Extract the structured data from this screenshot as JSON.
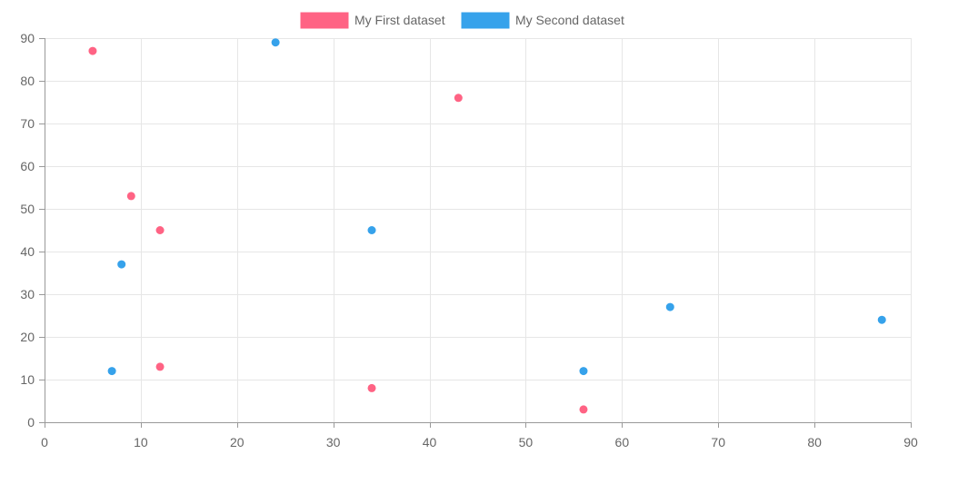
{
  "chart_data": {
    "type": "scatter",
    "title": "",
    "xlabel": "",
    "ylabel": "",
    "xlim": [
      0,
      90
    ],
    "ylim": [
      0,
      90
    ],
    "x_ticks": [
      0,
      10,
      20,
      30,
      40,
      50,
      60,
      70,
      80,
      90
    ],
    "y_ticks": [
      0,
      10,
      20,
      30,
      40,
      50,
      60,
      70,
      80,
      90
    ],
    "grid": true,
    "legend_position": "top",
    "series": [
      {
        "name": "My First dataset",
        "color": "#ff6384",
        "points": [
          {
            "x": 5,
            "y": 87
          },
          {
            "x": 43,
            "y": 76
          },
          {
            "x": 9,
            "y": 53
          },
          {
            "x": 12,
            "y": 45
          },
          {
            "x": 12,
            "y": 13
          },
          {
            "x": 34,
            "y": 8
          },
          {
            "x": 56,
            "y": 3
          }
        ]
      },
      {
        "name": "My Second dataset",
        "color": "#36a2eb",
        "points": [
          {
            "x": 24,
            "y": 89
          },
          {
            "x": 34,
            "y": 45
          },
          {
            "x": 8,
            "y": 37
          },
          {
            "x": 65,
            "y": 27
          },
          {
            "x": 87,
            "y": 24
          },
          {
            "x": 7,
            "y": 12
          },
          {
            "x": 56,
            "y": 12
          }
        ]
      }
    ]
  }
}
